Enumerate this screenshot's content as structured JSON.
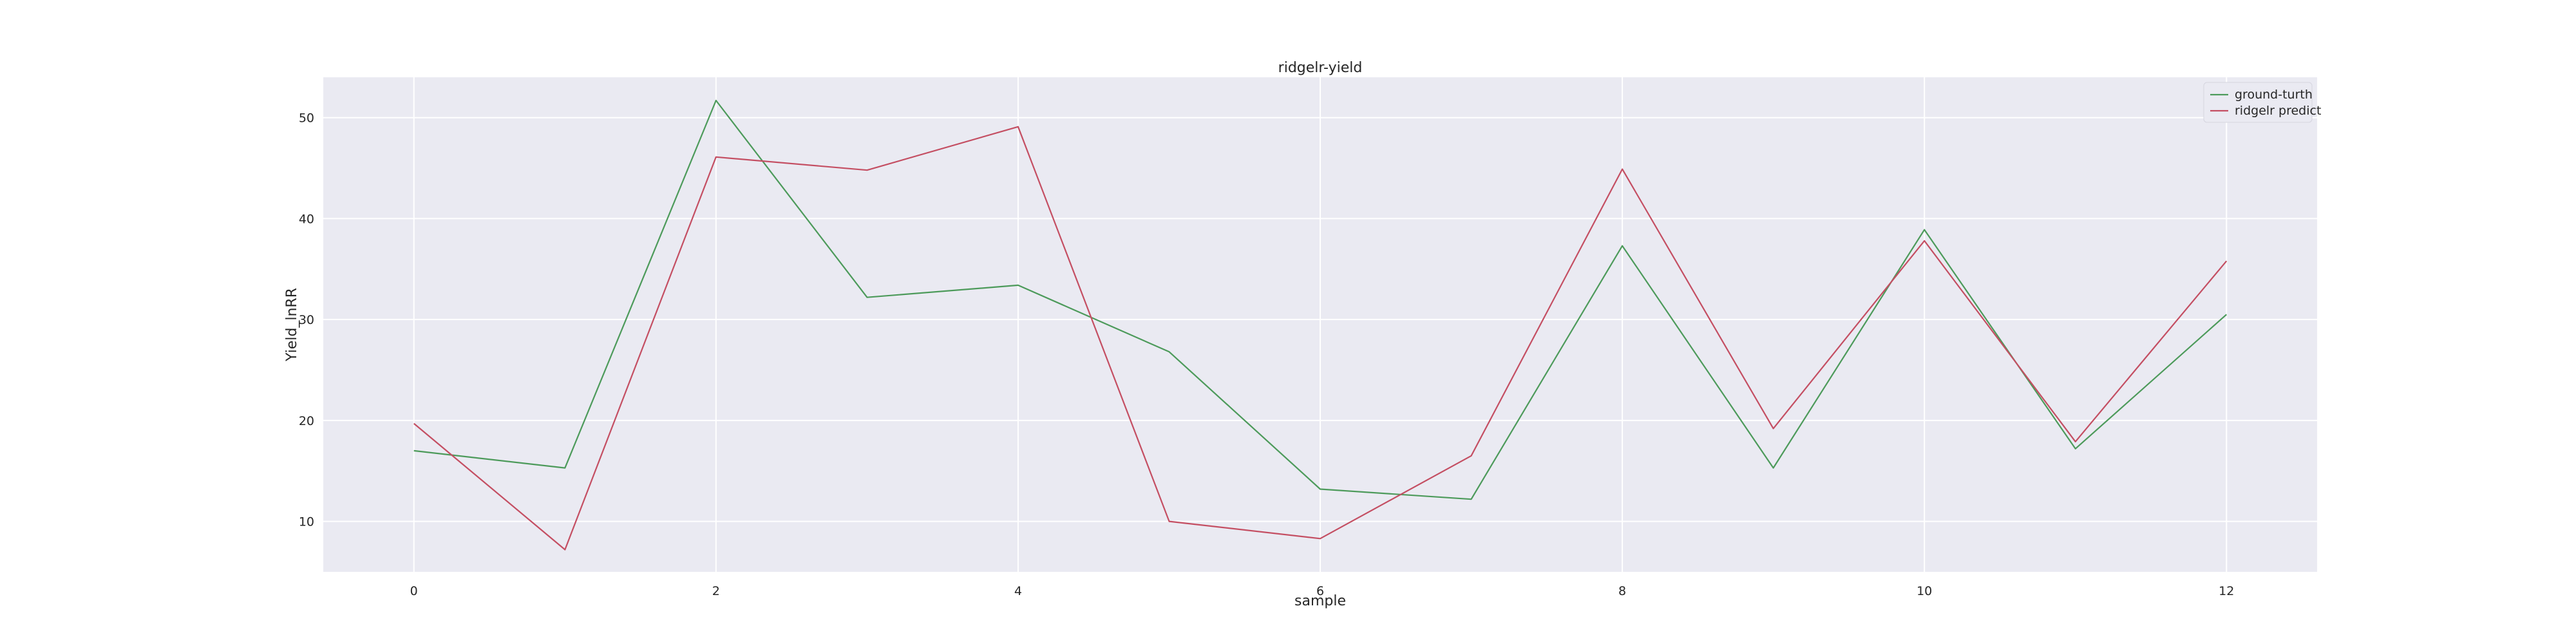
{
  "chart_data": {
    "type": "line",
    "title": "ridgelr-yield",
    "xlabel": "sample",
    "ylabel": "Yield_lnRR",
    "x": [
      0,
      1,
      2,
      3,
      4,
      5,
      6,
      7,
      8,
      9,
      10,
      11,
      12
    ],
    "xlim": [
      -0.6,
      12.6
    ],
    "ylim": [
      5,
      54
    ],
    "xticks": [
      0,
      2,
      4,
      6,
      8,
      10,
      12
    ],
    "yticks": [
      10,
      20,
      30,
      40,
      50
    ],
    "grid": true,
    "legend_position": "top-right",
    "series": [
      {
        "name": "ground-turth",
        "color": "#4c9a5a",
        "values": [
          17.0,
          15.3,
          51.7,
          32.2,
          33.4,
          26.8,
          13.2,
          12.2,
          37.3,
          15.3,
          38.9,
          17.2,
          30.5
        ]
      },
      {
        "name": "ridgelr predict",
        "color": "#c44e62",
        "values": [
          19.7,
          7.2,
          46.1,
          44.8,
          49.1,
          10.0,
          8.3,
          16.5,
          44.9,
          19.2,
          37.8,
          17.9,
          35.8
        ]
      }
    ]
  }
}
